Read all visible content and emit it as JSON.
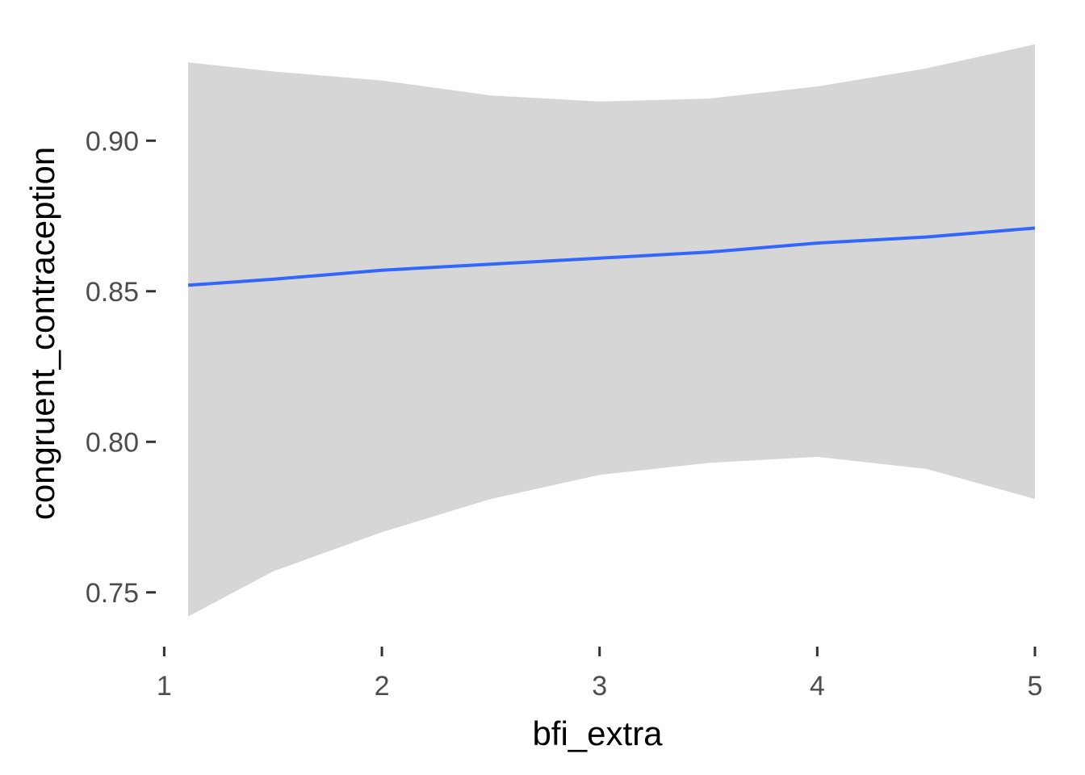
{
  "chart_data": {
    "type": "line",
    "xlabel": "bfi_extra",
    "ylabel": "congruent_contraception",
    "xlim": [
      0.98,
      5.0
    ],
    "ylim": [
      0.736,
      0.936
    ],
    "x_ticks": [
      1,
      2,
      3,
      4,
      5
    ],
    "x_tick_labels": [
      "1",
      "2",
      "3",
      "4",
      "5"
    ],
    "y_ticks": [
      0.75,
      0.8,
      0.85,
      0.9
    ],
    "y_tick_labels": [
      "0.75",
      "0.80",
      "0.85",
      "0.90"
    ],
    "grid": false,
    "series": [
      {
        "x": [
          1.11,
          1.5,
          2.0,
          2.5,
          3.0,
          3.5,
          4.0,
          4.5,
          5.0
        ],
        "y": [
          0.852,
          0.854,
          0.857,
          0.859,
          0.861,
          0.863,
          0.866,
          0.868,
          0.871
        ],
        "ci_lower": [
          0.742,
          0.757,
          0.77,
          0.781,
          0.789,
          0.793,
          0.795,
          0.791,
          0.781
        ],
        "ci_upper": [
          0.926,
          0.923,
          0.92,
          0.915,
          0.913,
          0.914,
          0.918,
          0.924,
          0.932
        ]
      }
    ],
    "line_color": "#3366ff",
    "band_color": "#d6d6d6"
  }
}
